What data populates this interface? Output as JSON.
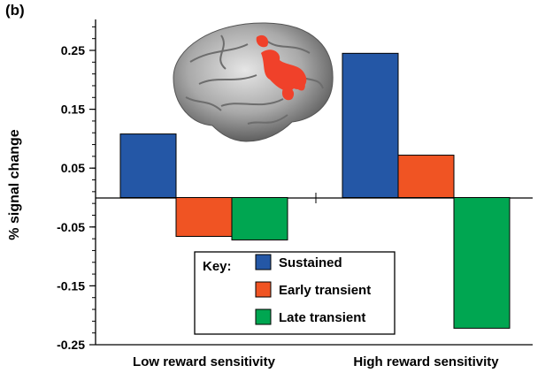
{
  "panel_label": "(b)",
  "chart_data": {
    "type": "bar",
    "title": "",
    "xlabel": "",
    "ylabel": "% signal change",
    "categories": [
      "Low reward sensitivity",
      "High reward sensitivity"
    ],
    "series": [
      {
        "name": "Sustained",
        "values": [
          0.108,
          0.245
        ],
        "color": "#2457a6"
      },
      {
        "name": "Early transient",
        "values": [
          -0.066,
          0.072
        ],
        "color": "#f05423"
      },
      {
        "name": "Late transient",
        "values": [
          -0.072,
          -0.222
        ],
        "color": "#00a651"
      }
    ],
    "ylim": [
      -0.25,
      0.3
    ],
    "yticks": [
      0.25,
      0.15,
      0.05,
      -0.05,
      -0.15,
      -0.25
    ],
    "ytick_labels": [
      "0.25",
      "0.15",
      "0.05",
      "-0.05",
      "-0.15",
      "-0.25"
    ],
    "legend": {
      "title": "Key:",
      "placement": "bottom-center"
    },
    "grid": false,
    "inset_image": "brain-surface-activation"
  }
}
